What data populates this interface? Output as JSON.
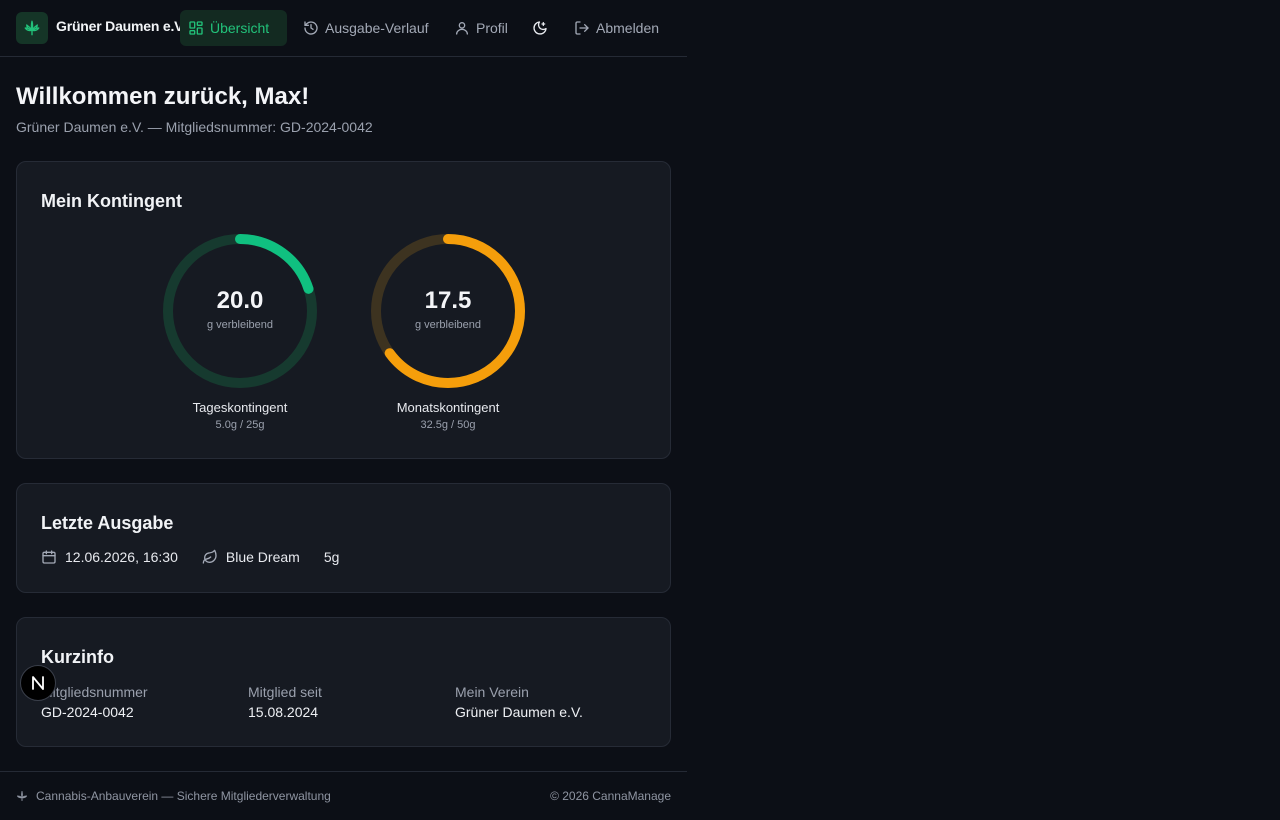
{
  "brand": {
    "name": "Grüner Daumen e.V."
  },
  "nav": {
    "overview": "Übersicht",
    "history": "Ausgabe-Verlauf",
    "profile": "Profil",
    "logout": "Abmelden"
  },
  "welcome": {
    "title": "Willkommen zurück, Max!",
    "subtitle": "Grüner Daumen e.V. — Mitgliedsnummer: GD-2024-0042"
  },
  "quota": {
    "title": "Mein Kontingent",
    "daily": {
      "remaining": "20.0",
      "unit": "g verbleibend",
      "label": "Tageskontingent",
      "detail": "5.0g / 25g",
      "used_fraction": 0.2,
      "color": "#10c080",
      "track_color": "#163a2f"
    },
    "monthly": {
      "remaining": "17.5",
      "unit": "g verbleibend",
      "label": "Monatskontingent",
      "detail": "32.5g / 50g",
      "used_fraction": 0.65,
      "color": "#f59e0b",
      "track_color": "#3d3320"
    }
  },
  "last_dispense": {
    "title": "Letzte Ausgabe",
    "date": "12.06.2026, 16:30",
    "strain": "Blue Dream",
    "amount": "5g"
  },
  "info": {
    "title": "Kurzinfo",
    "member_no_label": "Mitgliedsnummer",
    "member_no": "GD-2024-0042",
    "since_label": "Mitglied seit",
    "since": "15.08.2024",
    "club_label": "Mein Verein",
    "club": "Grüner Daumen e.V."
  },
  "footer": {
    "left": "Cannabis-Anbauverein — Sichere Mitgliederverwaltung",
    "right": "© 2026 CannaManage"
  },
  "colors": {
    "accent": "#22c27a",
    "background": "#0c0f16",
    "card": "#161a22"
  }
}
